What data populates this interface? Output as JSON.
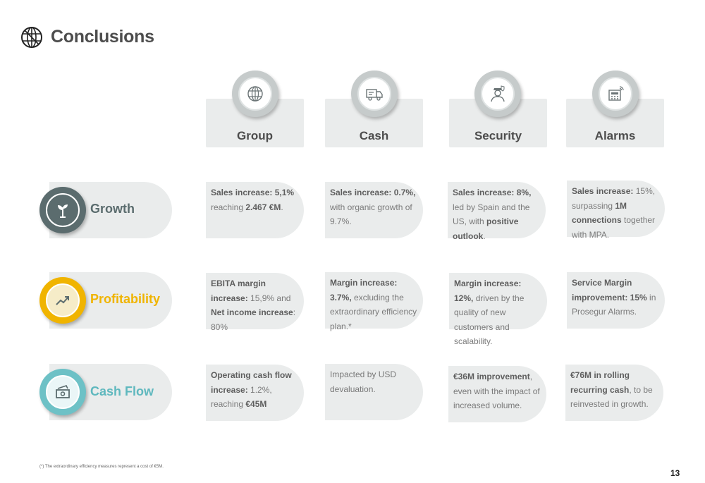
{
  "title": "Conclusions",
  "columns": [
    {
      "label": "Group",
      "icon": "globe-icon"
    },
    {
      "label": "Cash",
      "icon": "armored-truck-icon"
    },
    {
      "label": "Security",
      "icon": "security-guard-icon"
    },
    {
      "label": "Alarms",
      "icon": "alarm-panel-icon"
    }
  ],
  "rows": [
    {
      "label": "Growth",
      "icon": "plant-icon",
      "color": "#5b6c6e",
      "label_color": "#5b6c6e",
      "cells": [
        [
          {
            "t": "Sales increase: 5,1%",
            "b": true
          },
          {
            "t": " reaching "
          },
          {
            "t": "2.467 €M",
            "b": true
          },
          {
            "t": "."
          }
        ],
        [
          {
            "t": "Sales increase: 0.7%,",
            "b": true
          },
          {
            "t": " with organic growth of 9.7%."
          }
        ],
        [
          {
            "t": "Sales increase: 8%,",
            "b": true
          },
          {
            "t": " led by Spain and the US, with "
          },
          {
            "t": "positive outlook",
            "b": true
          },
          {
            "t": "."
          }
        ],
        [
          {
            "t": "Sales increase:",
            "b": true
          },
          {
            "t": " 15%, surpassing "
          },
          {
            "t": "1M connections",
            "b": true
          },
          {
            "t": " together with MPA."
          }
        ]
      ]
    },
    {
      "label": "Profitability",
      "icon": "trend-up-icon",
      "color": "#f0b400",
      "label_color": "#f0b400",
      "cells": [
        [
          {
            "t": "EBITA margin increase:",
            "b": true
          },
          {
            "t": " 15,9% and "
          },
          {
            "t": "Net income increase",
            "b": true
          },
          {
            "t": ": 80%"
          }
        ],
        [
          {
            "t": "Margin increase: 3.7%,",
            "b": true
          },
          {
            "t": " excluding the extraordinary efficiency plan.*"
          }
        ],
        [
          {
            "t": "Margin increase: 12%,",
            "b": true
          },
          {
            "t": " driven by the quality of new customers and scalability."
          }
        ],
        [
          {
            "t": "Service Margin improvement: 15%",
            "b": true
          },
          {
            "t": " in Prosegur Alarms."
          }
        ]
      ]
    },
    {
      "label": "Cash Flow",
      "icon": "cash-icon",
      "color": "#6dc1c6",
      "label_color": "#5fb8be",
      "cells": [
        [
          {
            "t": "Operating cash flow increase:",
            "b": true
          },
          {
            "t": " 1.2%, reaching "
          },
          {
            "t": "€45M",
            "b": true
          }
        ],
        [
          {
            "t": "Impacted by USD devaluation."
          }
        ],
        [
          {
            "t": "€36M improvement",
            "b": true
          },
          {
            "t": ", even with the impact of increased volume."
          }
        ],
        [
          {
            "t": "€76M in rolling recurring cash",
            "b": true
          },
          {
            "t": ", to be reinvested in growth."
          }
        ]
      ]
    }
  ],
  "footnote": "(*) The extraordinary efficiency measures represent a cost of €5M.",
  "page_number": "13"
}
